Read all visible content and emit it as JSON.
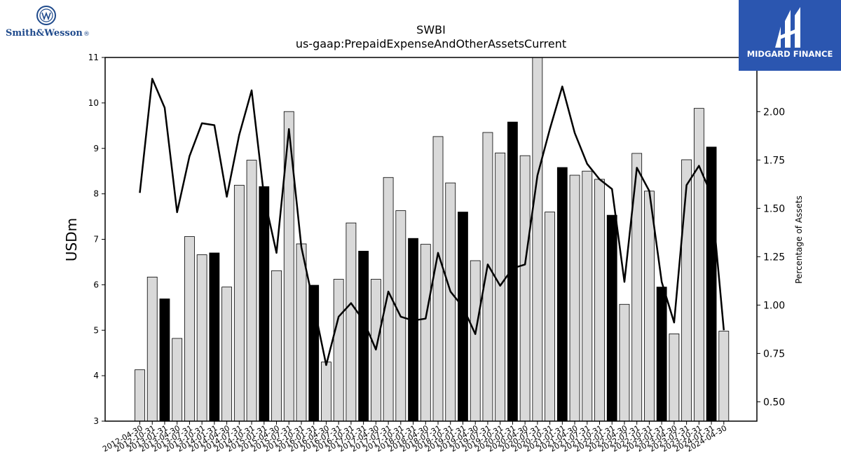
{
  "logos": {
    "left_brand": "Smith&Wesson",
    "left_brand_suffix": "®",
    "right_brand": "MIDGARD FINANCE",
    "right_brand_color": "#2b56b0"
  },
  "chart_data": {
    "type": "bar",
    "title": "SWBI",
    "subtitle": "us-gaap:PrepaidExpenseAndOtherAssetsCurrent",
    "ylabel": "USDm",
    "y2label": "Percentage of Assets",
    "ylim": [
      3,
      11
    ],
    "y2lim": [
      0.4,
      2.28
    ],
    "yticks": [
      "3",
      "4",
      "5",
      "6",
      "7",
      "8",
      "9",
      "10",
      "11"
    ],
    "y2ticks": [
      "0.50",
      "0.75",
      "1.00",
      "1.25",
      "1.50",
      "1.75",
      "2.00"
    ],
    "categories": [
      "2012-04-30",
      "2012-10-31",
      "2013-01-31",
      "2013-04-30",
      "2013-07-31",
      "2013-10-31",
      "2014-01-31",
      "2014-04-30",
      "2014-07-31",
      "2014-10-31",
      "2015-01-31",
      "2015-04-30",
      "2015-07-31",
      "2015-10-31",
      "2016-01-31",
      "2016-04-30",
      "2016-07-31",
      "2016-10-31",
      "2017-01-31",
      "2017-04-30",
      "2017-07-31",
      "2017-10-31",
      "2018-01-31",
      "2018-04-30",
      "2018-07-31",
      "2018-10-31",
      "2019-01-31",
      "2019-04-30",
      "2019-07-31",
      "2019-10-31",
      "2020-01-31",
      "2020-04-30",
      "2020-07-31",
      "2020-10-31",
      "2021-01-31",
      "2021-04-30",
      "2021-07-31",
      "2021-10-31",
      "2022-01-31",
      "2022-04-30",
      "2022-07-31",
      "2022-10-31",
      "2023-01-31",
      "2023-04-30",
      "2023-07-31",
      "2023-10-31",
      "2024-01-31",
      "2024-04-30"
    ],
    "series": [
      {
        "kind": "bar",
        "values": [
          4.13,
          6.17,
          5.69,
          4.82,
          7.06,
          6.66,
          6.7,
          5.95,
          8.19,
          8.74,
          8.16,
          6.31,
          9.81,
          6.9,
          5.99,
          4.3,
          6.12,
          7.36,
          6.74,
          6.12,
          8.36,
          7.63,
          7.02,
          6.89,
          9.26,
          8.24,
          7.6,
          6.53,
          9.35,
          8.9,
          9.58,
          8.84,
          11.1,
          7.6,
          8.58,
          8.41,
          8.5,
          8.32,
          7.53,
          5.57,
          8.89,
          8.06,
          5.95,
          4.92,
          8.75,
          9.88,
          9.03,
          4.98
        ],
        "highlight": [
          false,
          false,
          true,
          false,
          false,
          false,
          true,
          false,
          false,
          false,
          true,
          false,
          false,
          false,
          true,
          false,
          false,
          false,
          true,
          false,
          false,
          false,
          true,
          false,
          false,
          false,
          true,
          false,
          false,
          false,
          true,
          false,
          false,
          false,
          true,
          false,
          false,
          false,
          true,
          false,
          false,
          false,
          true,
          false,
          false,
          false,
          true,
          false
        ],
        "color": "#d9d9d9",
        "highlight_color": "#000000"
      },
      {
        "kind": "line",
        "axis": "right",
        "values": [
          1.58,
          2.17,
          2.02,
          1.48,
          1.77,
          1.94,
          1.93,
          1.56,
          1.88,
          2.11,
          1.56,
          1.27,
          1.91,
          1.3,
          1.0,
          0.69,
          0.94,
          1.01,
          0.92,
          0.77,
          1.07,
          0.94,
          0.92,
          0.93,
          1.27,
          1.07,
          0.99,
          0.85,
          1.21,
          1.1,
          1.19,
          1.21,
          1.67,
          1.91,
          2.13,
          1.89,
          1.73,
          1.65,
          1.6,
          1.12,
          1.71,
          1.59,
          1.12,
          0.91,
          1.62,
          1.72,
          1.57,
          0.87
        ],
        "color": "#000000"
      }
    ]
  }
}
